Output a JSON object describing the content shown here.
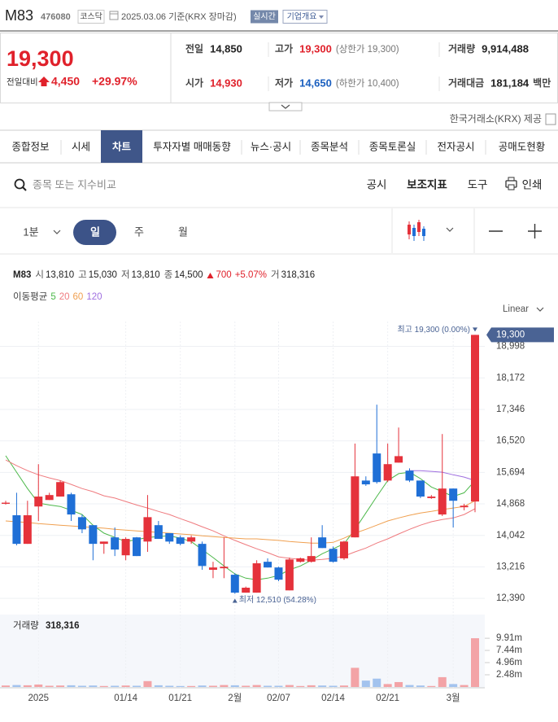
{
  "header": {
    "name": "M83",
    "code": "476080",
    "market": "코스닥",
    "date": "2025.03.06 기준(KRX 장마감)",
    "realtime": "실시간",
    "company_info": "기업개요"
  },
  "price": {
    "current": "19,300",
    "change_label": "전일대비",
    "change": "4,450",
    "change_rate": "+29.97%",
    "stats": [
      {
        "label": "전일",
        "value": "14,850",
        "color": "#222222"
      },
      {
        "label": "고가",
        "value": "19,300",
        "note": "(상한가 19,300)",
        "color": "#e0212b"
      },
      {
        "label": "거래량",
        "value": "9,914,488",
        "color": "#222222"
      },
      {
        "label": "시가",
        "value": "14,930",
        "color": "#e0212b"
      },
      {
        "label": "저가",
        "value": "14,650",
        "note": "(하한가 10,400)",
        "color": "#1a5fbf"
      },
      {
        "label": "거래대금",
        "value": "181,184",
        "unit": "백만",
        "color": "#222222"
      }
    ],
    "source": "한국거래소(KRX) 제공"
  },
  "tabs": {
    "items": [
      "종합정보",
      "시세",
      "차트",
      "투자자별 매매동향",
      "뉴스·공시",
      "종목분석",
      "종목토론실",
      "전자공시",
      "공매도현황"
    ],
    "active": 2
  },
  "toolbar": {
    "search_placeholder": "종목 또는 지수비교",
    "buttons": [
      "공시",
      "보조지표",
      "도구",
      "인쇄"
    ]
  },
  "periods": {
    "items": [
      "1분",
      "일",
      "주",
      "월"
    ],
    "active": 1
  },
  "chart_info": {
    "name": "M83",
    "fields": [
      {
        "label": "시",
        "value": "13,810"
      },
      {
        "label": "고",
        "value": "15,030"
      },
      {
        "label": "저",
        "value": "13,810"
      },
      {
        "label": "종",
        "value": "14,500"
      }
    ],
    "change": "700",
    "change_rate": "+5.07%",
    "volume_label": "거",
    "volume": "318,316"
  },
  "chart_data": {
    "type": "candlestick",
    "categories": [
      null,
      null,
      null,
      "2025",
      null,
      null,
      null,
      null,
      null,
      null,
      null,
      "01/14",
      null,
      null,
      null,
      null,
      "01/21",
      null,
      null,
      null,
      null,
      "2월",
      null,
      null,
      null,
      "02/07",
      null,
      null,
      null,
      null,
      "02/14",
      null,
      null,
      null,
      null,
      "02/21",
      null,
      null,
      null,
      null,
      null,
      "3월",
      null,
      null
    ],
    "open": [
      14870,
      14570,
      13820,
      14800,
      14970,
      15060,
      15120,
      14520,
      14310,
      13820,
      13990,
      13520,
      13990,
      13880,
      14310,
      14100,
      13990,
      13880,
      13820,
      13140,
      13180,
      13010,
      12540,
      12540,
      13350,
      13200,
      12600,
      13350,
      13350,
      13990,
      13690,
      13440,
      13990,
      15480,
      16190,
      15480,
      15950,
      15740,
      15480,
      15020,
      14590,
      15270,
      14780,
      14930
    ],
    "high": [
      14950,
      15160,
      14950,
      15910,
      15160,
      15480,
      15160,
      14590,
      14310,
      13880,
      14250,
      13990,
      14000,
      15100,
      14420,
      14100,
      14040,
      14040,
      13880,
      13350,
      13990,
      13050,
      12700,
      13390,
      13440,
      13220,
      13460,
      13460,
      13990,
      14310,
      13750,
      13900,
      16450,
      15590,
      17470,
      16450,
      16870,
      15800,
      15480,
      15100,
      16700,
      15270,
      14870,
      19300
    ],
    "low": [
      14850,
      13780,
      13820,
      14420,
      14970,
      15060,
      14420,
      14100,
      13390,
      13560,
      13500,
      13390,
      13500,
      13610,
      13950,
      13820,
      13780,
      13820,
      13140,
      12920,
      12920,
      12510,
      12540,
      12540,
      13200,
      12840,
      12600,
      13330,
      13330,
      13710,
      13330,
      13400,
      13990,
      15340,
      15400,
      15440,
      15950,
      15440,
      15020,
      15000,
      14550,
      14250,
      14700,
      14650
    ],
    "close": [
      14900,
      13820,
      14570,
      15060,
      15100,
      15440,
      14590,
      14200,
      13820,
      13880,
      13670,
      13950,
      13500,
      14520,
      13950,
      13880,
      13820,
      13990,
      13240,
      13200,
      13220,
      12540,
      12670,
      13310,
      13200,
      12880,
      13410,
      13440,
      13500,
      13710,
      13350,
      13880,
      15590,
      15380,
      15440,
      15910,
      16120,
      15480,
      15060,
      15060,
      15270,
      14950,
      14820,
      19300
    ],
    "up_color": "#e5323b",
    "down_color": "#1f6fd6",
    "ylim": [
      12030,
      19650
    ],
    "yticks": [
      {
        "value": 12390,
        "label": "12,390"
      },
      {
        "value": 13216,
        "label": "13,216"
      },
      {
        "value": 14042,
        "label": "14,042"
      },
      {
        "value": 14868,
        "label": "14,868"
      },
      {
        "value": 15694,
        "label": "15,694"
      },
      {
        "value": 16520,
        "label": "16,520"
      },
      {
        "value": 17346,
        "label": "17,346"
      },
      {
        "value": 18172,
        "label": "18,172"
      },
      {
        "value": 18998,
        "label": "18,998"
      }
    ],
    "grid": true,
    "scale_label": "Linear",
    "ma_title": "이동평균",
    "moving_averages": [
      {
        "name": "5",
        "color": "#4cb84a",
        "values": [
          16130,
          15700,
          15270,
          14890,
          14840,
          14800,
          14700,
          14590,
          14310,
          14100,
          13990,
          13880,
          13930,
          13990,
          14010,
          14030,
          13970,
          13880,
          13670,
          13460,
          13240,
          13030,
          12920,
          12880,
          12920,
          12990,
          13140,
          13240,
          13390,
          13560,
          13690,
          13820,
          14200,
          14630,
          15060,
          15480,
          15660,
          15700,
          15530,
          15310,
          15190,
          15060,
          15160,
          15480
        ]
      },
      {
        "name": "20",
        "color": "#ef7b7f",
        "values": [
          16020,
          15870,
          15740,
          15630,
          15550,
          15480,
          15380,
          15270,
          15190,
          15080,
          15020,
          14930,
          14840,
          14760,
          14670,
          14590,
          14480,
          14380,
          14270,
          14160,
          14030,
          13910,
          13800,
          13690,
          13590,
          13480,
          13440,
          13410,
          13390,
          13410,
          13440,
          13500,
          13610,
          13710,
          13840,
          13950,
          14080,
          14200,
          14310,
          14400,
          14460,
          14500,
          14590,
          14740
        ]
      },
      {
        "name": "60",
        "color": "#f0a050",
        "values": [
          14420,
          14400,
          14380,
          14350,
          14330,
          14310,
          14290,
          14270,
          14250,
          14230,
          14200,
          14180,
          14160,
          14140,
          14120,
          14100,
          14080,
          14060,
          14030,
          14010,
          13990,
          13970,
          13950,
          13950,
          13930,
          13910,
          13880,
          13860,
          13840,
          13840,
          13860,
          13970,
          14100,
          14200,
          14310,
          14420,
          14500,
          14570,
          14630,
          14670,
          14720,
          14760,
          14800,
          14950
        ]
      },
      {
        "name": "120",
        "color": "#a070e0",
        "values": [
          null,
          null,
          null,
          null,
          null,
          null,
          null,
          null,
          null,
          null,
          null,
          null,
          null,
          null,
          null,
          null,
          null,
          null,
          null,
          null,
          null,
          null,
          null,
          null,
          null,
          null,
          null,
          null,
          null,
          null,
          null,
          null,
          null,
          null,
          null,
          null,
          null,
          15740,
          15740,
          15720,
          15700,
          15630,
          15570,
          15480
        ]
      }
    ],
    "last_price": {
      "value": 19300,
      "label": "19,300"
    },
    "annotations": {
      "high": {
        "value": 19300,
        "text": "최고 19,300 (0.00%)"
      },
      "low": {
        "value": 12510,
        "text": "최저 12,510 (54.28%)"
      }
    },
    "volume": {
      "title": "거래량",
      "value_label": "318,316",
      "values": [
        300000,
        400000,
        350000,
        500000,
        250000,
        300000,
        350000,
        250000,
        300000,
        200000,
        250000,
        300000,
        250000,
        1200000,
        350000,
        250000,
        200000,
        200000,
        300000,
        250000,
        400000,
        350000,
        250000,
        400000,
        250000,
        250000,
        400000,
        200000,
        350000,
        300000,
        250000,
        300000,
        3900000,
        1300000,
        1700000,
        600000,
        1000000,
        400000,
        300000,
        200000,
        2000000,
        600000,
        400000,
        9914488
      ],
      "up_color": "#f3a3a6",
      "down_color": "#a3c3ee",
      "ylim": [
        0,
        13900000
      ],
      "yticks": [
        {
          "value": 2480000,
          "label": "2.48m"
        },
        {
          "value": 4960000,
          "label": "4.96m"
        },
        {
          "value": 7440000,
          "label": "7.44m"
        },
        {
          "value": 9910000,
          "label": "9.91m"
        }
      ]
    }
  }
}
